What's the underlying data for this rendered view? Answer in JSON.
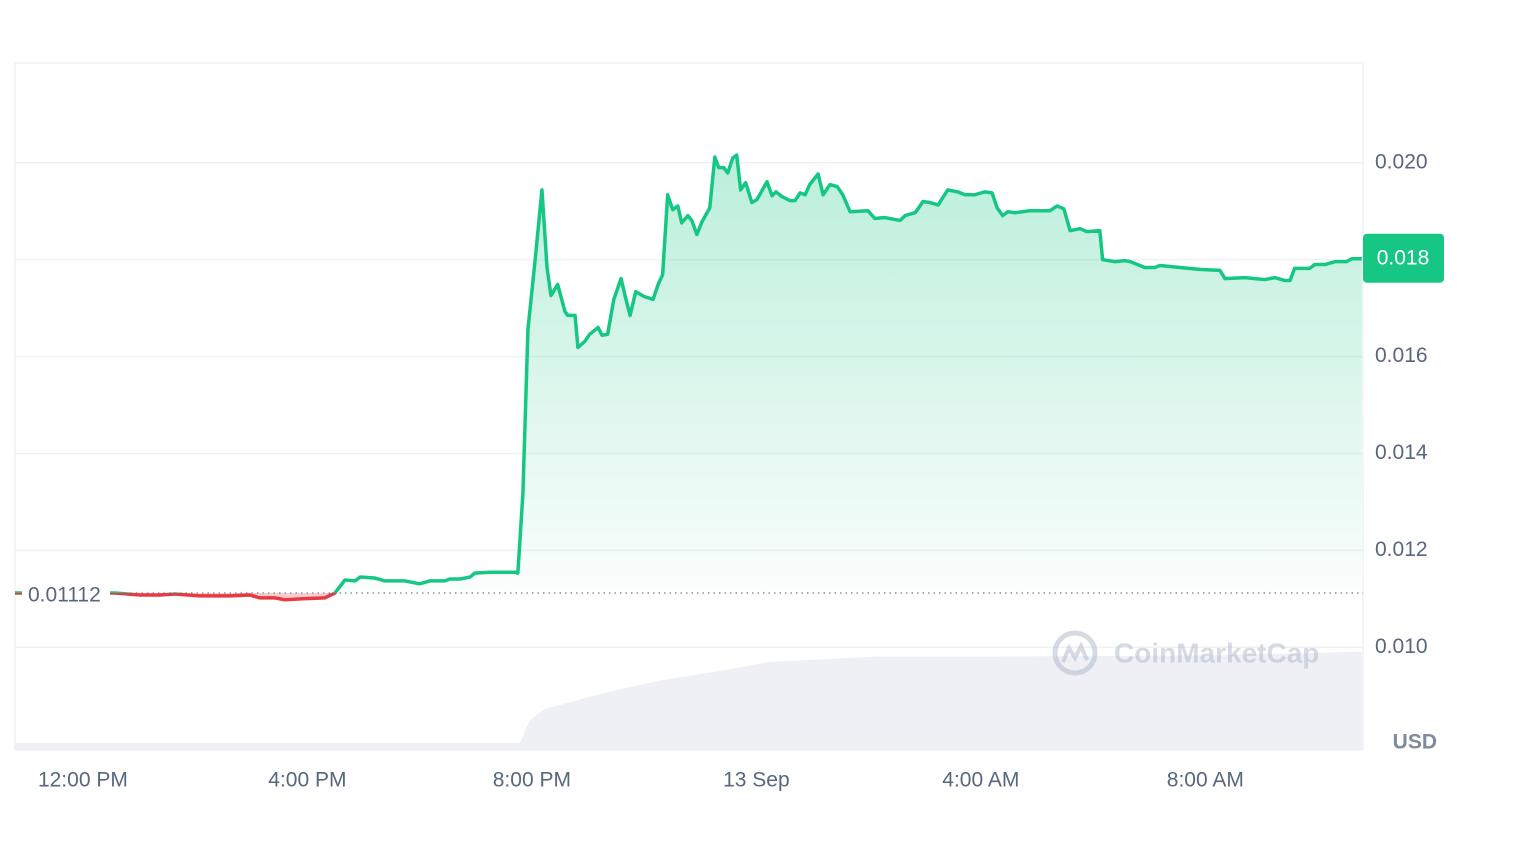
{
  "chart_data": {
    "type": "line",
    "x": [
      -1.21,
      0.57,
      1.02,
      1.37,
      1.64,
      2.09,
      2.62,
      2.97,
      3.15,
      3.42,
      3.6,
      3.87,
      4.31,
      4.49,
      4.67,
      4.85,
      4.94,
      5.2,
      5.38,
      5.74,
      6.0,
      6.18,
      6.45,
      6.54,
      6.72,
      6.9,
      6.98,
      7.25,
      7.7,
      7.75,
      7.84,
      7.93,
      8.05,
      8.18,
      8.27,
      8.34,
      8.46,
      8.59,
      8.64,
      8.77,
      8.82,
      8.94,
      9.03,
      9.18,
      9.25,
      9.35,
      9.46,
      9.59,
      9.66,
      9.75,
      9.85,
      10.0,
      10.16,
      10.25,
      10.33,
      10.42,
      10.51,
      10.6,
      10.67,
      10.78,
      10.85,
      10.94,
      11.03,
      11.17,
      11.26,
      11.33,
      11.42,
      11.49,
      11.58,
      11.65,
      11.72,
      11.81,
      11.92,
      12.01,
      12.19,
      12.28,
      12.35,
      12.46,
      12.6,
      12.69,
      12.78,
      12.87,
      12.95,
      13.1,
      13.19,
      13.31,
      13.44,
      13.54,
      13.67,
      13.99,
      14.11,
      14.29,
      14.56,
      14.65,
      14.83,
      14.97,
      15.09,
      15.24,
      15.41,
      15.59,
      15.72,
      15.89,
      16.07,
      16.2,
      16.29,
      16.39,
      16.48,
      16.61,
      16.87,
      17.23,
      17.36,
      17.48,
      17.59,
      17.77,
      17.89,
      18.12,
      18.17,
      18.39,
      18.57,
      18.66,
      18.92,
      19.1,
      19.19,
      19.55,
      19.9,
      20.26,
      20.35,
      20.71,
      20.88,
      21.06,
      21.24,
      21.42,
      21.51,
      21.59,
      21.86,
      21.95,
      22.13,
      22.31,
      22.52,
      22.61,
      22.79
    ],
    "values": [
      0.01112,
      0.01112,
      0.01108,
      0.01108,
      0.0111,
      0.01106,
      0.01106,
      0.01108,
      0.01102,
      0.01102,
      0.01098,
      0.011,
      0.01102,
      0.01112,
      0.01139,
      0.01137,
      0.01145,
      0.01143,
      0.01137,
      0.01137,
      0.01131,
      0.01137,
      0.01137,
      0.01141,
      0.01141,
      0.01145,
      0.01153,
      0.01155,
      0.01155,
      0.01153,
      0.01316,
      0.01656,
      0.0179,
      0.01944,
      0.01784,
      0.01726,
      0.01749,
      0.01693,
      0.01685,
      0.01685,
      0.01619,
      0.01631,
      0.01646,
      0.0166,
      0.01644,
      0.01646,
      0.01718,
      0.01761,
      0.01726,
      0.01685,
      0.01734,
      0.01724,
      0.01718,
      0.01749,
      0.01769,
      0.01934,
      0.01903,
      0.01911,
      0.01876,
      0.01891,
      0.01881,
      0.01852,
      0.01878,
      0.01907,
      0.02012,
      0.0199,
      0.0199,
      0.01979,
      0.0201,
      0.02016,
      0.01944,
      0.01959,
      0.01918,
      0.01924,
      0.01961,
      0.01932,
      0.0194,
      0.0193,
      0.01922,
      0.01922,
      0.01938,
      0.01934,
      0.01955,
      0.01977,
      0.01934,
      0.01955,
      0.01951,
      0.01934,
      0.01899,
      0.01901,
      0.01885,
      0.01887,
      0.01881,
      0.01891,
      0.01897,
      0.0192,
      0.01918,
      0.01913,
      0.01944,
      0.0194,
      0.01934,
      0.01934,
      0.0194,
      0.01938,
      0.01907,
      0.01891,
      0.01899,
      0.01897,
      0.01901,
      0.01901,
      0.01911,
      0.01905,
      0.0186,
      0.01864,
      0.01858,
      0.0186,
      0.018,
      0.01796,
      0.01798,
      0.01796,
      0.01784,
      0.01784,
      0.01788,
      0.01784,
      0.0178,
      0.01778,
      0.01761,
      0.01763,
      0.01761,
      0.01759,
      0.01763,
      0.01757,
      0.01757,
      0.01782,
      0.01782,
      0.0179,
      0.0179,
      0.01796,
      0.01796,
      0.01802,
      0.01802
    ],
    "color": "#16c784",
    "below_color": "#ea3943",
    "reference_value": 0.01112,
    "price_tag": "0.018",
    "volume": {
      "color": "#eff0f5",
      "x": [
        -1.21,
        7.79,
        7.96,
        8.23,
        8.5,
        9.03,
        9.57,
        10.46,
        11.35,
        12.24,
        13.31,
        14.2,
        16.34,
        19.9,
        22.79
      ],
      "values": [
        0.00803,
        0.00803,
        0.00849,
        0.00873,
        0.00881,
        0.00898,
        0.00914,
        0.00935,
        0.00951,
        0.0097,
        0.00976,
        0.00981,
        0.00981,
        0.00983,
        0.00991
      ]
    },
    "xlim": [
      -1.21,
      22.81
    ],
    "xticks": [
      {
        "value": 0,
        "label": "12:00 PM"
      },
      {
        "value": 4,
        "label": "4:00 PM"
      },
      {
        "value": 8,
        "label": "8:00 PM"
      },
      {
        "value": 12,
        "label": "13 Sep"
      },
      {
        "value": 16,
        "label": "4:00 AM"
      },
      {
        "value": 20,
        "label": "8:00 AM"
      }
    ],
    "ylim": [
      0.00788,
      0.02206
    ],
    "yticks": [
      {
        "value": 0.01,
        "label": "0.010"
      },
      0.012,
      0.014,
      0.016,
      0.018,
      {
        "value": 0.02,
        "label": "0.020"
      }
    ],
    "y_unit": "USD",
    "watermark": "CoinMarketCap",
    "grid": true
  }
}
